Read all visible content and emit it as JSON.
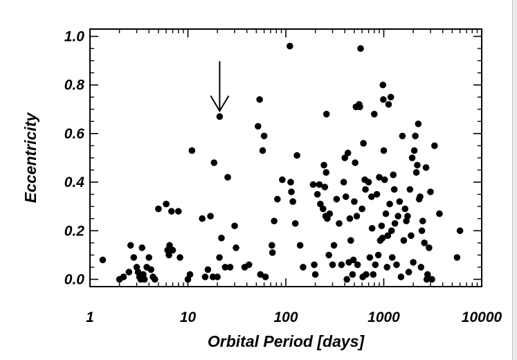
{
  "chart_data": {
    "type": "scatter",
    "title": "",
    "xlabel": "Orbital Period [days]",
    "ylabel": "Eccentricity",
    "xscale": "log",
    "xlim": [
      1,
      10000
    ],
    "ylim": [
      -0.03,
      1.03
    ],
    "x_tick_labels": [
      "1",
      "10",
      "100",
      "1000",
      "10000"
    ],
    "x_tick_values": [
      1,
      10,
      100,
      1000,
      10000
    ],
    "y_tick_labels": [
      "0.0",
      "0.2",
      "0.4",
      "0.6",
      "0.8",
      "1.0"
    ],
    "y_tick_values": [
      0.0,
      0.2,
      0.4,
      0.6,
      0.8,
      1.0
    ],
    "grid": false,
    "marker_color": "#000000",
    "annotation": {
      "type": "arrow",
      "target": [
        21.1,
        0.67
      ]
    },
    "points": [
      [
        1.35,
        0.08
      ],
      [
        2.0,
        0.0
      ],
      [
        2.2,
        0.01
      ],
      [
        2.5,
        0.03
      ],
      [
        2.6,
        0.14
      ],
      [
        2.8,
        0.09
      ],
      [
        3.0,
        0.05
      ],
      [
        3.1,
        0.03
      ],
      [
        3.2,
        0.01
      ],
      [
        3.25,
        0.02
      ],
      [
        3.3,
        0.0
      ],
      [
        3.4,
        0.13
      ],
      [
        3.5,
        0.02
      ],
      [
        3.6,
        0.0
      ],
      [
        3.8,
        0.05
      ],
      [
        4.0,
        0.09
      ],
      [
        4.2,
        0.04
      ],
      [
        4.4,
        0.01
      ],
      [
        4.6,
        0.0
      ],
      [
        5.0,
        0.29
      ],
      [
        6.0,
        0.31
      ],
      [
        6.2,
        0.12
      ],
      [
        6.4,
        0.1
      ],
      [
        6.5,
        0.14
      ],
      [
        6.8,
        0.28
      ],
      [
        7.0,
        0.12
      ],
      [
        8.0,
        0.28
      ],
      [
        8.3,
        0.09
      ],
      [
        10.0,
        0.0
      ],
      [
        10.5,
        0.02
      ],
      [
        11.0,
        0.53
      ],
      [
        14.0,
        0.25
      ],
      [
        15.0,
        0.01
      ],
      [
        16.0,
        0.04
      ],
      [
        17.0,
        0.26
      ],
      [
        18.0,
        0.01
      ],
      [
        18.5,
        0.48
      ],
      [
        20.0,
        0.01
      ],
      [
        21.0,
        0.09
      ],
      [
        21.1,
        0.67
      ],
      [
        22.0,
        0.17
      ],
      [
        24.0,
        0.05
      ],
      [
        25.5,
        0.42
      ],
      [
        27.0,
        0.05
      ],
      [
        30.0,
        0.22
      ],
      [
        31.0,
        0.13
      ],
      [
        38.0,
        0.05
      ],
      [
        42.0,
        0.06
      ],
      [
        52.0,
        0.63
      ],
      [
        54.0,
        0.74
      ],
      [
        55.0,
        0.02
      ],
      [
        58.0,
        0.53
      ],
      [
        60.0,
        0.59
      ],
      [
        62.0,
        0.01
      ],
      [
        72.0,
        0.14
      ],
      [
        73.0,
        0.11
      ],
      [
        76.0,
        0.24
      ],
      [
        82.0,
        0.33
      ],
      [
        92.0,
        0.41
      ],
      [
        110.0,
        0.96
      ],
      [
        112.0,
        0.4
      ],
      [
        114.0,
        0.36
      ],
      [
        118.0,
        0.32
      ],
      [
        125.0,
        0.23
      ],
      [
        130.0,
        0.51
      ],
      [
        140.0,
        0.14
      ],
      [
        150.0,
        0.05
      ],
      [
        190.0,
        0.39
      ],
      [
        195.0,
        0.06
      ],
      [
        200.0,
        0.02
      ],
      [
        210.0,
        0.35
      ],
      [
        220.0,
        0.39
      ],
      [
        225.0,
        0.31
      ],
      [
        240.0,
        0.29
      ],
      [
        245.0,
        0.47
      ],
      [
        250.0,
        0.38
      ],
      [
        255.0,
        0.26
      ],
      [
        258.0,
        0.44
      ],
      [
        260.0,
        0.68
      ],
      [
        265.0,
        0.25
      ],
      [
        275.0,
        0.1
      ],
      [
        280.0,
        0.27
      ],
      [
        300.0,
        0.06
      ],
      [
        310.0,
        0.14
      ],
      [
        330.0,
        0.33
      ],
      [
        350.0,
        0.23
      ],
      [
        370.0,
        0.06
      ],
      [
        390.0,
        0.4
      ],
      [
        400.0,
        0.5
      ],
      [
        410.0,
        0.34
      ],
      [
        420.0,
        0.0
      ],
      [
        430.0,
        0.52
      ],
      [
        440.0,
        0.07
      ],
      [
        450.0,
        0.25
      ],
      [
        460.0,
        0.16
      ],
      [
        480.0,
        0.02
      ],
      [
        490.0,
        0.08
      ],
      [
        500.0,
        0.32
      ],
      [
        510.0,
        0.48
      ],
      [
        520.0,
        0.71
      ],
      [
        530.0,
        0.26
      ],
      [
        540.0,
        0.06
      ],
      [
        560.0,
        0.72
      ],
      [
        570.0,
        0.71
      ],
      [
        580.0,
        0.95
      ],
      [
        600.0,
        0.29
      ],
      [
        610.0,
        0.01
      ],
      [
        620.0,
        0.56
      ],
      [
        640.0,
        0.41
      ],
      [
        650.0,
        0.37
      ],
      [
        660.0,
        0.02
      ],
      [
        700.0,
        0.4
      ],
      [
        720.0,
        0.09
      ],
      [
        750.0,
        0.34
      ],
      [
        760.0,
        0.21
      ],
      [
        780.0,
        0.02
      ],
      [
        800.0,
        0.68
      ],
      [
        820.0,
        0.06
      ],
      [
        850.0,
        0.35
      ],
      [
        880.0,
        0.1
      ],
      [
        900.0,
        0.42
      ],
      [
        920.0,
        0.16
      ],
      [
        950.0,
        0.22
      ],
      [
        970.0,
        0.17
      ],
      [
        980.0,
        0.8
      ],
      [
        990.0,
        0.74
      ],
      [
        1000.0,
        0.53
      ],
      [
        1020.0,
        0.41
      ],
      [
        1050.0,
        0.27
      ],
      [
        1080.0,
        0.05
      ],
      [
        1100.0,
        0.18
      ],
      [
        1120.0,
        0.72
      ],
      [
        1150.0,
        0.31
      ],
      [
        1180.0,
        0.75
      ],
      [
        1200.0,
        0.2
      ],
      [
        1220.0,
        0.09
      ],
      [
        1250.0,
        0.43
      ],
      [
        1280.0,
        0.37
      ],
      [
        1300.0,
        0.23
      ],
      [
        1350.0,
        0.06
      ],
      [
        1400.0,
        0.26
      ],
      [
        1450.0,
        0.32
      ],
      [
        1500.0,
        0.01
      ],
      [
        1550.0,
        0.59
      ],
      [
        1600.0,
        0.16
      ],
      [
        1650.0,
        0.29
      ],
      [
        1700.0,
        0.24
      ],
      [
        1750.0,
        0.26
      ],
      [
        1800.0,
        0.03
      ],
      [
        1850.0,
        0.37
      ],
      [
        1900.0,
        0.18
      ],
      [
        1950.0,
        0.5
      ],
      [
        2000.0,
        0.07
      ],
      [
        2050.0,
        0.53
      ],
      [
        2100.0,
        0.59
      ],
      [
        2150.0,
        0.44
      ],
      [
        2200.0,
        0.47
      ],
      [
        2250.0,
        0.64
      ],
      [
        2300.0,
        0.33
      ],
      [
        2350.0,
        0.34
      ],
      [
        2400.0,
        0.05
      ],
      [
        2450.0,
        0.2
      ],
      [
        2500.0,
        0.24
      ],
      [
        2600.0,
        0.15
      ],
      [
        2700.0,
        0.46
      ],
      [
        2750.0,
        0.0
      ],
      [
        2800.0,
        0.02
      ],
      [
        2900.0,
        0.13
      ],
      [
        3000.0,
        0.36
      ],
      [
        3100.0,
        0.0
      ],
      [
        3300.0,
        0.55
      ],
      [
        3700.0,
        0.27
      ],
      [
        5600.0,
        0.09
      ],
      [
        6000.0,
        0.2
      ]
    ]
  }
}
